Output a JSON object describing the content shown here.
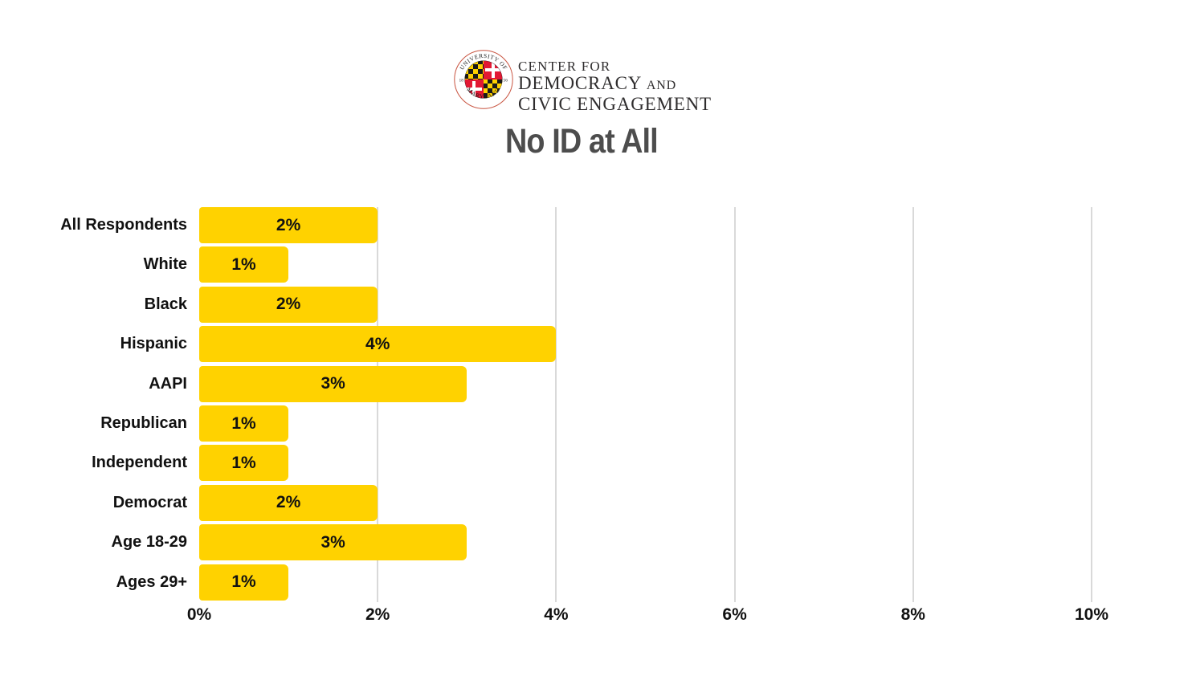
{
  "header": {
    "logo": {
      "seal": {
        "arc_top_text": "UNIVERSITY OF",
        "arc_bottom_text": "MARYLAND",
        "year_left": "18",
        "year_right": "56",
        "red": "#e21833",
        "gold": "#ffd200",
        "black": "#1a1a1a"
      },
      "line1": "CENTER FOR",
      "line2_main": "DEMOCRACY",
      "line2_small": "AND",
      "line3": "CIVIC ENGAGEMENT"
    },
    "title": "No ID at All"
  },
  "chart_data": {
    "type": "bar",
    "orientation": "horizontal",
    "title": "No ID at All",
    "categories": [
      "All Respondents",
      "White",
      "Black",
      "Hispanic",
      "AAPI",
      "Republican",
      "Independent",
      "Democrat",
      "Age 18-29",
      "Ages 29+"
    ],
    "values": [
      2,
      1,
      2,
      4,
      3,
      1,
      1,
      2,
      3,
      1
    ],
    "value_labels": [
      "2%",
      "1%",
      "2%",
      "4%",
      "3%",
      "1%",
      "1%",
      "2%",
      "3%",
      "1%"
    ],
    "ticks": [
      {
        "value": 0,
        "label": "0%"
      },
      {
        "value": 2,
        "label": "2%"
      },
      {
        "value": 4,
        "label": "4%"
      },
      {
        "value": 6,
        "label": "6%"
      },
      {
        "value": 8,
        "label": "8%"
      },
      {
        "value": 10,
        "label": "10%"
      }
    ],
    "xlim": [
      0,
      10
    ],
    "grid": true,
    "legend": false,
    "bar_color": "#ffd200",
    "gridline_color": "#d9d9d9",
    "label_color": "#111111",
    "title_color": "#4d4d4d"
  }
}
